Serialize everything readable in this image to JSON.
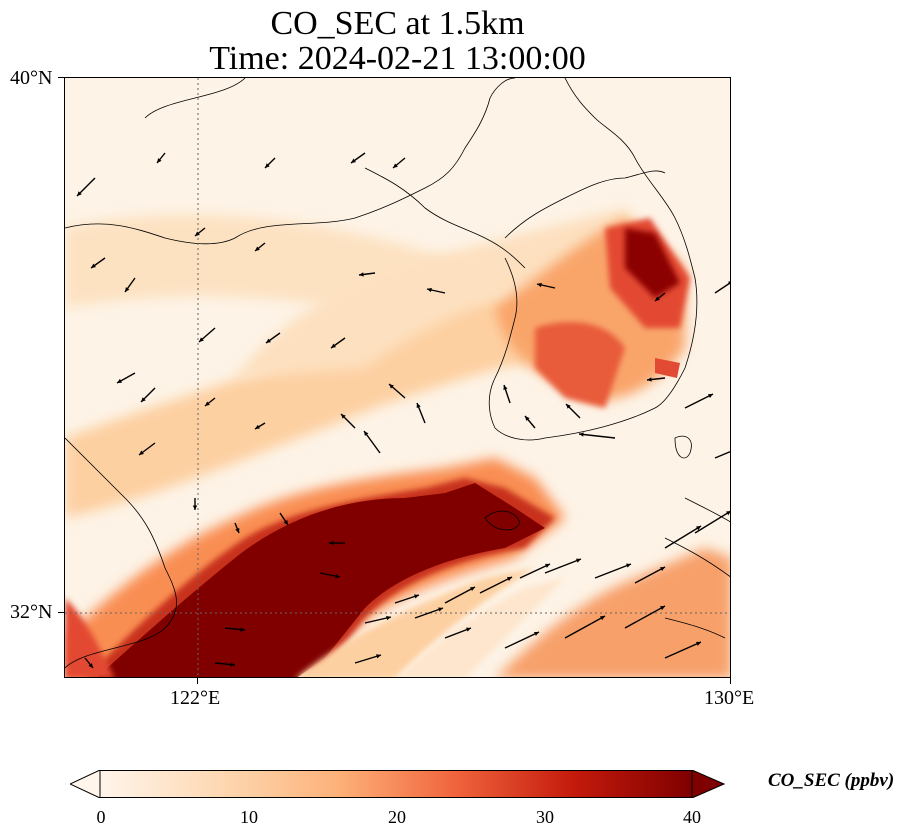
{
  "title": {
    "line1": "CO_SEC at 1.5km",
    "line2": "Time: 2024-02-21 13:00:00"
  },
  "axes": {
    "lat_labels": [
      "40°N",
      "32°N"
    ],
    "lon_labels": [
      "122°E",
      "130°E"
    ],
    "lat_range": [
      31,
      40
    ],
    "lon_range": [
      120,
      130
    ],
    "gridlines": "dotted at 122°E and 32°N"
  },
  "colorbar": {
    "label": "CO_SEC (ppbv)",
    "ticks": [
      "0",
      "10",
      "20",
      "30",
      "40"
    ],
    "range": [
      0,
      40
    ],
    "extend": "both",
    "colormap": [
      "#fff5eb",
      "#fdd9b4",
      "#fda762",
      "#f16913",
      "#c03a06",
      "#7f0000"
    ]
  },
  "map": {
    "features": [
      "coastlines",
      "country borders",
      "wind vectors",
      "CO concentration field"
    ],
    "background_color": "#fdf4e8",
    "high_color": "#800000"
  }
}
